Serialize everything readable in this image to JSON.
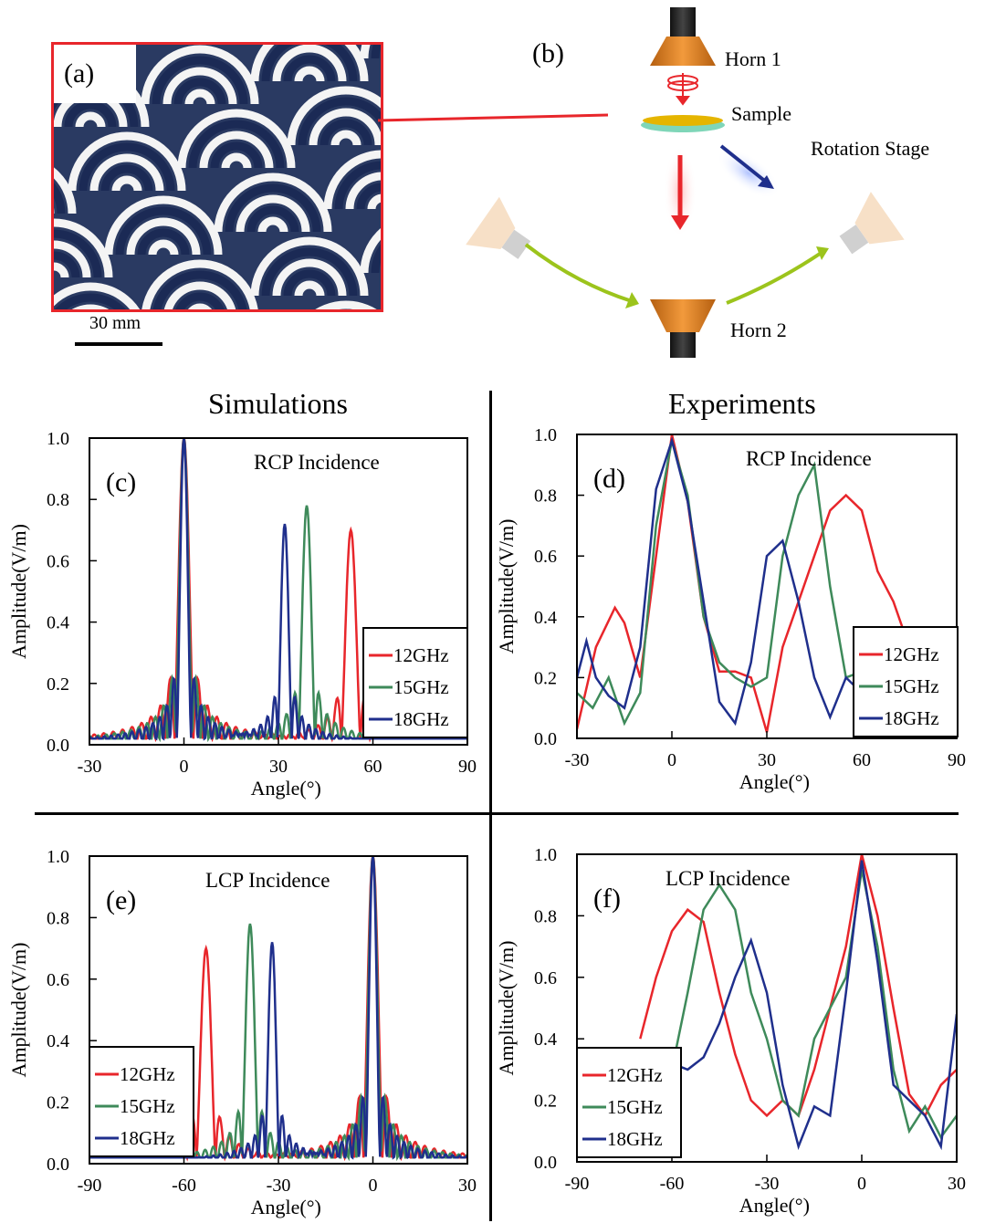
{
  "panel_a": {
    "label": "(a)",
    "scale_text": "30 mm"
  },
  "panel_b": {
    "label": "(b)",
    "horn1": "Horn 1",
    "sample": "Sample",
    "rotation": "Rotation Stage",
    "horn2": "Horn 2"
  },
  "headers": {
    "sim": "Simulations",
    "exp": "Experiments"
  },
  "colors": {
    "12GHz": "#e8262b",
    "15GHz": "#3e8a5a",
    "18GHz": "#1f2f8c"
  },
  "chart_data": [
    {
      "id": "c",
      "label": "(c)",
      "type": "line",
      "title": "RCP Incidence",
      "xlabel": "Angle(°)",
      "ylabel": "Amplitude(V/m)",
      "xlim": [
        -30,
        90
      ],
      "ylim": [
        0,
        1.0
      ],
      "xticks": [
        "-30",
        "0",
        "30",
        "60",
        "90"
      ],
      "yticks": [
        "0.0",
        "0.2",
        "0.4",
        "0.6",
        "0.8",
        "1.0"
      ],
      "legend": [
        "12GHz",
        "15GHz",
        "18GHz"
      ],
      "legend_position": "right",
      "series": [
        {
          "name": "12GHz",
          "peaks": [
            [
              0,
              1.0,
              3
            ],
            [
              53,
              0.7,
              3
            ]
          ],
          "sidelobe": 0.22
        },
        {
          "name": "15GHz",
          "peaks": [
            [
              0,
              1.0,
              2.6
            ],
            [
              39,
              0.78,
              2.6
            ]
          ],
          "sidelobe": 0.16
        },
        {
          "name": "18GHz",
          "peaks": [
            [
              0,
              1.0,
              2.2
            ],
            [
              32,
              0.72,
              2.2
            ]
          ],
          "sidelobe": 0.16
        }
      ]
    },
    {
      "id": "d",
      "label": "(d)",
      "type": "line",
      "title": "RCP Incidence",
      "xlabel": "Angle(°)",
      "ylabel": "Amplitude(V/m)",
      "xlim": [
        -30,
        90
      ],
      "ylim": [
        0,
        1.0
      ],
      "xticks": [
        "-30",
        "0",
        "30",
        "60",
        "90"
      ],
      "yticks": [
        "0.0",
        "0.2",
        "0.4",
        "0.6",
        "0.8",
        "1.0"
      ],
      "legend": [
        "12GHz",
        "15GHz",
        "18GHz"
      ],
      "legend_position": "right",
      "series": [
        {
          "name": "12GHz",
          "x": [
            -30,
            -24,
            -18,
            -15,
            -10,
            -5,
            0,
            5,
            10,
            15,
            20,
            25,
            30,
            35,
            40,
            45,
            50,
            55,
            60,
            65,
            70,
            73
          ],
          "y": [
            0.03,
            0.3,
            0.43,
            0.38,
            0.2,
            0.6,
            1.0,
            0.78,
            0.4,
            0.22,
            0.22,
            0.2,
            0.02,
            0.3,
            0.45,
            0.6,
            0.75,
            0.8,
            0.75,
            0.55,
            0.45,
            0.36
          ]
        },
        {
          "name": "15GHz",
          "x": [
            -30,
            -25,
            -20,
            -15,
            -10,
            -5,
            0,
            5,
            10,
            15,
            20,
            25,
            30,
            35,
            40,
            45,
            50,
            55,
            60
          ],
          "y": [
            0.15,
            0.1,
            0.2,
            0.05,
            0.15,
            0.7,
            0.98,
            0.8,
            0.4,
            0.25,
            0.2,
            0.17,
            0.2,
            0.6,
            0.8,
            0.9,
            0.5,
            0.2,
            0.22
          ]
        },
        {
          "name": "18GHz",
          "x": [
            -30,
            -27,
            -24,
            -20,
            -15,
            -10,
            -5,
            0,
            5,
            10,
            15,
            20,
            25,
            30,
            35,
            40,
            45,
            50,
            55,
            60
          ],
          "y": [
            0.2,
            0.32,
            0.2,
            0.14,
            0.1,
            0.3,
            0.82,
            0.98,
            0.78,
            0.45,
            0.12,
            0.05,
            0.25,
            0.6,
            0.65,
            0.45,
            0.2,
            0.07,
            0.2,
            0.15
          ]
        }
      ]
    },
    {
      "id": "e",
      "label": "(e)",
      "type": "line",
      "title": "LCP Incidence",
      "xlabel": "Angle(°)",
      "ylabel": "Amplitude(V/m)",
      "xlim": [
        -90,
        30
      ],
      "ylim": [
        0,
        1.0
      ],
      "xticks": [
        "-90",
        "-60",
        "-30",
        "0",
        "30"
      ],
      "yticks": [
        "0.0",
        "0.2",
        "0.4",
        "0.6",
        "0.8",
        "1.0"
      ],
      "legend": [
        "12GHz",
        "15GHz",
        "18GHz"
      ],
      "legend_position": "left",
      "series": [
        {
          "name": "12GHz",
          "peaks": [
            [
              -53,
              0.7,
              3
            ],
            [
              0,
              1.0,
              3
            ]
          ],
          "sidelobe": 0.22
        },
        {
          "name": "15GHz",
          "peaks": [
            [
              -39,
              0.78,
              2.6
            ],
            [
              0,
              1.0,
              2.6
            ]
          ],
          "sidelobe": 0.16
        },
        {
          "name": "18GHz",
          "peaks": [
            [
              -32,
              0.72,
              2.2
            ],
            [
              0,
              1.0,
              2.2
            ]
          ],
          "sidelobe": 0.16
        }
      ]
    },
    {
      "id": "f",
      "label": "(f)",
      "type": "line",
      "title": "LCP Incidence",
      "xlabel": "Angle(°)",
      "ylabel": "Amplitude(V/m)",
      "xlim": [
        -90,
        30
      ],
      "ylim": [
        0,
        1.0
      ],
      "xticks": [
        "-90",
        "-60",
        "-30",
        "0",
        "30"
      ],
      "yticks": [
        "0.0",
        "0.2",
        "0.4",
        "0.6",
        "0.8",
        "1.0"
      ],
      "legend": [
        "12GHz",
        "15GHz",
        "18GHz"
      ],
      "legend_position": "left",
      "series": [
        {
          "name": "12GHz",
          "x": [
            -70,
            -65,
            -60,
            -55,
            -50,
            -45,
            -40,
            -35,
            -30,
            -25,
            -20,
            -15,
            -10,
            -5,
            0,
            5,
            10,
            15,
            20,
            25,
            30
          ],
          "y": [
            0.4,
            0.6,
            0.75,
            0.82,
            0.78,
            0.55,
            0.35,
            0.2,
            0.15,
            0.2,
            0.15,
            0.3,
            0.5,
            0.7,
            1.0,
            0.8,
            0.5,
            0.22,
            0.15,
            0.25,
            0.3
          ]
        },
        {
          "name": "15GHz",
          "x": [
            -70,
            -65,
            -60,
            -55,
            -50,
            -45,
            -40,
            -35,
            -30,
            -25,
            -20,
            -15,
            -10,
            -5,
            0,
            5,
            10,
            15,
            20,
            25,
            30
          ],
          "y": [
            0.18,
            0.22,
            0.3,
            0.55,
            0.82,
            0.9,
            0.82,
            0.55,
            0.4,
            0.2,
            0.15,
            0.4,
            0.5,
            0.6,
            0.95,
            0.7,
            0.3,
            0.1,
            0.18,
            0.08,
            0.15
          ]
        },
        {
          "name": "18GHz",
          "x": [
            -70,
            -65,
            -60,
            -55,
            -50,
            -45,
            -40,
            -35,
            -30,
            -25,
            -20,
            -15,
            -10,
            -5,
            0,
            5,
            10,
            15,
            20,
            25,
            30
          ],
          "y": [
            0.2,
            0.28,
            0.32,
            0.3,
            0.34,
            0.45,
            0.6,
            0.72,
            0.55,
            0.25,
            0.05,
            0.18,
            0.15,
            0.55,
            0.98,
            0.65,
            0.25,
            0.2,
            0.15,
            0.05,
            0.48
          ]
        }
      ]
    }
  ]
}
